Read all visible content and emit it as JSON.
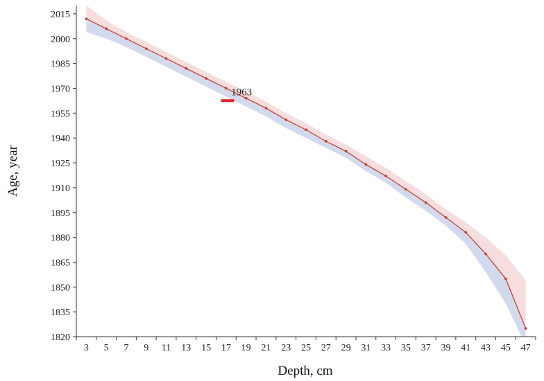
{
  "chart_data": {
    "type": "line",
    "xlabel": "Depth, cm",
    "ylabel": "Age, year",
    "ylim": [
      1820,
      2020
    ],
    "yticks": [
      1820,
      1835,
      1850,
      1865,
      1880,
      1895,
      1910,
      1925,
      1940,
      1955,
      1970,
      1985,
      2000,
      2015
    ],
    "xticks": [
      3,
      5,
      7,
      9,
      11,
      13,
      15,
      17,
      19,
      21,
      23,
      25,
      27,
      29,
      31,
      33,
      35,
      37,
      39,
      41,
      43,
      45,
      47
    ],
    "x": [
      3,
      5,
      7,
      9,
      11,
      13,
      15,
      17,
      19,
      21,
      23,
      25,
      27,
      29,
      31,
      33,
      35,
      37,
      39,
      41,
      43,
      45,
      47
    ],
    "series": [
      {
        "values": [
          2012,
          2006,
          2000,
          1994,
          1988,
          1982,
          1976,
          1970,
          1964,
          1958,
          1951,
          1945,
          1938,
          1932,
          1924,
          1917,
          1909,
          1901,
          1892,
          1883,
          1870,
          1855,
          1825
        ],
        "color": "#c0392b"
      }
    ],
    "upper_band": [
      2020,
      2011,
      2004,
      1998,
      1992,
      1986,
      1980,
      1974,
      1968,
      1962,
      1955,
      1949,
      1942,
      1936,
      1929,
      1922,
      1914,
      1906,
      1897,
      1889,
      1880,
      1869,
      1854
    ],
    "lower_band": [
      2004,
      2000,
      1995,
      1989,
      1983,
      1977,
      1971,
      1965,
      1959,
      1953,
      1946,
      1940,
      1934,
      1928,
      1920,
      1913,
      1904,
      1896,
      1887,
      1876,
      1859,
      1840,
      1815
    ],
    "upper_band_color": "#f6d8d8",
    "lower_band_color": "#cfd6ec",
    "annotation": {
      "text": "1963",
      "x": 17.5,
      "y": 1968
    },
    "marker_1963": {
      "x_from": 16.5,
      "x_to": 17.8,
      "y": 1963,
      "color": "#e41e26"
    },
    "grid": false,
    "legend": "none"
  }
}
